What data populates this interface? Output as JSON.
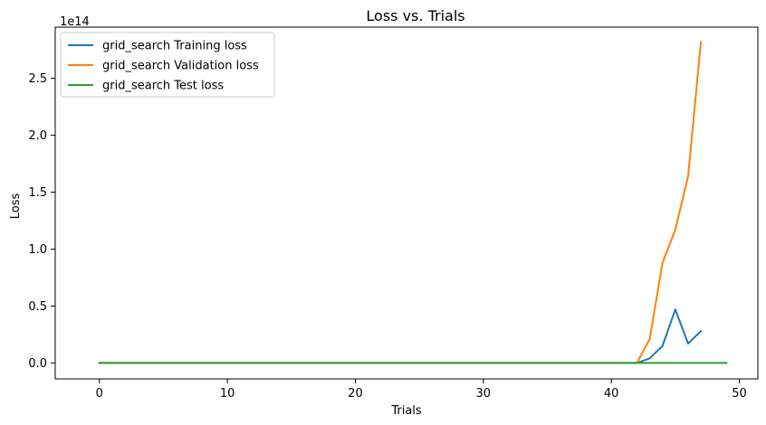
{
  "chart_data": {
    "type": "line",
    "title": "Loss vs. Trials",
    "xlabel": "Trials",
    "ylabel": "Loss",
    "y_offset_label": "1e14",
    "xlim": [
      -3.45,
      51.45
    ],
    "ylim": [
      -0.14,
      2.95
    ],
    "y_scale_note": "values in units of 1e14",
    "grid": false,
    "legend_position": "top-left",
    "xticks": [
      0,
      10,
      20,
      30,
      40,
      50
    ],
    "xtick_labels": [
      "0",
      "10",
      "20",
      "30",
      "40",
      "50"
    ],
    "yticks": [
      0.0,
      0.5,
      1.0,
      1.5,
      2.0,
      2.5
    ],
    "ytick_labels": [
      "0.0",
      "0.5",
      "1.0",
      "1.5",
      "2.0",
      "2.5"
    ],
    "series": [
      {
        "name": "grid_search Training loss",
        "color": "#1f77b4",
        "x": [
          0,
          1,
          2,
          3,
          4,
          5,
          6,
          7,
          8,
          9,
          10,
          11,
          12,
          13,
          14,
          15,
          16,
          17,
          18,
          19,
          20,
          21,
          22,
          23,
          24,
          25,
          26,
          27,
          28,
          29,
          30,
          31,
          32,
          33,
          34,
          35,
          36,
          37,
          38,
          39,
          40,
          41,
          42,
          43,
          44,
          45,
          46,
          47
        ],
        "y": [
          0,
          0,
          0,
          0,
          0,
          0,
          0,
          0,
          0,
          0,
          0,
          0,
          0,
          0,
          0,
          0,
          0,
          0,
          0,
          0,
          0,
          0,
          0,
          0,
          0,
          0,
          0,
          0,
          0,
          0,
          0,
          0,
          0,
          0,
          0,
          0,
          0,
          0,
          0,
          0,
          0,
          0,
          0,
          0.04,
          0.15,
          0.47,
          0.17,
          0.28
        ]
      },
      {
        "name": "grid_search Validation loss",
        "color": "#ff7f0e",
        "x": [
          0,
          1,
          2,
          3,
          4,
          5,
          6,
          7,
          8,
          9,
          10,
          11,
          12,
          13,
          14,
          15,
          16,
          17,
          18,
          19,
          20,
          21,
          22,
          23,
          24,
          25,
          26,
          27,
          28,
          29,
          30,
          31,
          32,
          33,
          34,
          35,
          36,
          37,
          38,
          39,
          40,
          41,
          42,
          43,
          44,
          45,
          46,
          47
        ],
        "y": [
          0,
          0,
          0,
          0,
          0,
          0,
          0,
          0,
          0,
          0,
          0,
          0,
          0,
          0,
          0,
          0,
          0,
          0,
          0,
          0,
          0,
          0,
          0,
          0,
          0,
          0,
          0,
          0,
          0,
          0,
          0,
          0,
          0,
          0,
          0,
          0,
          0,
          0,
          0,
          0,
          0,
          0,
          0,
          0.21,
          0.88,
          1.17,
          1.64,
          2.82
        ]
      },
      {
        "name": "grid_search Test loss",
        "color": "#2ca02c",
        "x": [
          0,
          1,
          2,
          3,
          4,
          5,
          6,
          7,
          8,
          9,
          10,
          11,
          12,
          13,
          14,
          15,
          16,
          17,
          18,
          19,
          20,
          21,
          22,
          23,
          24,
          25,
          26,
          27,
          28,
          29,
          30,
          31,
          32,
          33,
          34,
          35,
          36,
          37,
          38,
          39,
          40,
          41,
          42,
          43,
          44,
          45,
          46,
          47,
          48,
          49
        ],
        "y": [
          0,
          0,
          0,
          0,
          0,
          0,
          0,
          0,
          0,
          0,
          0,
          0,
          0,
          0,
          0,
          0,
          0,
          0,
          0,
          0,
          0,
          0,
          0,
          0,
          0,
          0,
          0,
          0,
          0,
          0,
          0,
          0,
          0,
          0,
          0,
          0,
          0,
          0,
          0,
          0,
          0,
          0,
          0,
          0,
          0,
          0,
          0,
          0,
          0,
          0
        ]
      }
    ]
  }
}
